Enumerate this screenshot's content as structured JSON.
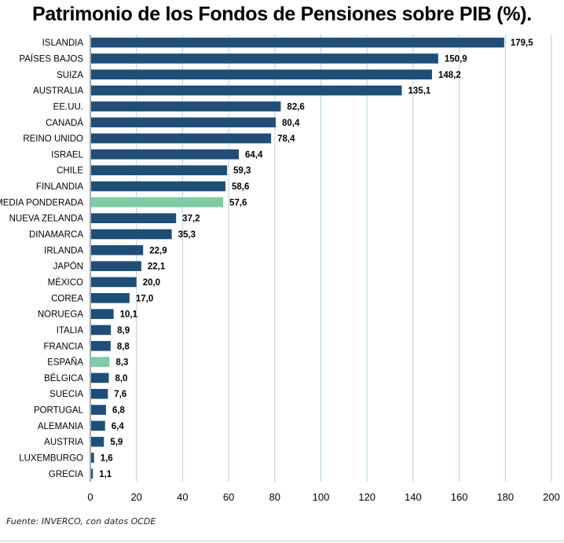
{
  "chart_data": {
    "type": "bar",
    "orientation": "horizontal",
    "title": "Patrimonio de los Fondos de Pensiones sobre PIB (%).",
    "xlabel": "",
    "ylabel": "",
    "xlim": [
      0,
      200
    ],
    "ticks": [
      0,
      20,
      40,
      60,
      80,
      100,
      120,
      140,
      160,
      180,
      200
    ],
    "grid": true,
    "categories": [
      "ISLANDIA",
      "PAÍSES BAJOS",
      "SUIZA",
      "AUSTRALIA",
      "EE.UU.",
      "CANADÁ",
      "REINO UNIDO",
      "ISRAEL",
      "CHILE",
      "FINLANDIA",
      "MEDIA PONDERADA",
      "NUEVA ZELANDA",
      "DINAMARCA",
      "IRLANDA",
      "JAPÓN",
      "MÉXICO",
      "COREA",
      "NORUEGA",
      "ITALIA",
      "FRANCIA",
      "ESPAÑA",
      "BÉLGICA",
      "SUECIA",
      "PORTUGAL",
      "ALEMANIA",
      "AUSTRIA",
      "LUXEMBURGO",
      "GRECIA"
    ],
    "values": [
      179.5,
      150.9,
      148.2,
      135.1,
      82.6,
      80.4,
      78.4,
      64.4,
      59.3,
      58.6,
      57.6,
      37.2,
      35.3,
      22.9,
      22.1,
      20.0,
      17.0,
      10.1,
      8.9,
      8.8,
      8.3,
      8.0,
      7.6,
      6.8,
      6.4,
      5.9,
      1.6,
      1.1
    ],
    "value_labels": [
      "179,5",
      "150,9",
      "148,2",
      "135,1",
      "82,6",
      "80,4",
      "78,4",
      "64,4",
      "59,3",
      "58,6",
      "57,6",
      "37,2",
      "35,3",
      "22,9",
      "22,1",
      "20,0",
      "17,0",
      "10,1",
      "8,9",
      "8,8",
      "8,3",
      "8,0",
      "7,6",
      "6,8",
      "6,4",
      "5,9",
      "1,6",
      "1,1"
    ],
    "highlighted": [
      "MEDIA PONDERADA",
      "ESPAÑA"
    ],
    "colors": {
      "bar": "#1f4e79",
      "highlight": "#7fcba4",
      "grid": "#a9d3ea"
    }
  },
  "source_note": "Fuente: INVERCO, con datos OCDE"
}
